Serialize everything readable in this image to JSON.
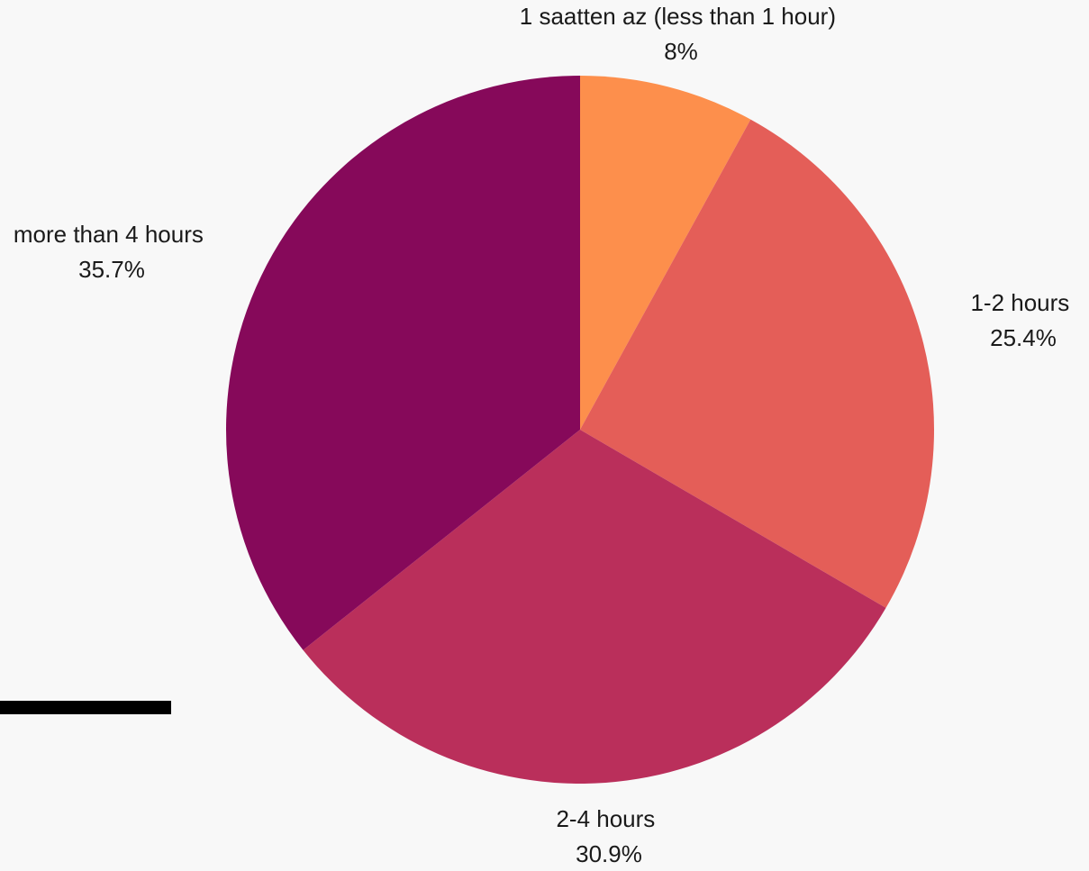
{
  "chart_data": {
    "type": "pie",
    "title": "",
    "start_angle_deg": 0,
    "direction": "clockwise",
    "label_format": "{label}\n{value}%",
    "slices": [
      {
        "label": "1 saatten az (less than 1 hour)",
        "value": 8,
        "value_text": "8%",
        "color": "#fd8f4c"
      },
      {
        "label": "1-2 hours",
        "value": 25.4,
        "value_text": "25.4%",
        "color": "#e45e58"
      },
      {
        "label": "2-4 hours",
        "value": 30.9,
        "value_text": "30.9%",
        "color": "#ba2f5b"
      },
      {
        "label": "more than 4 hours",
        "value": 35.7,
        "value_text": "35.7%",
        "color": "#86095a"
      }
    ]
  }
}
